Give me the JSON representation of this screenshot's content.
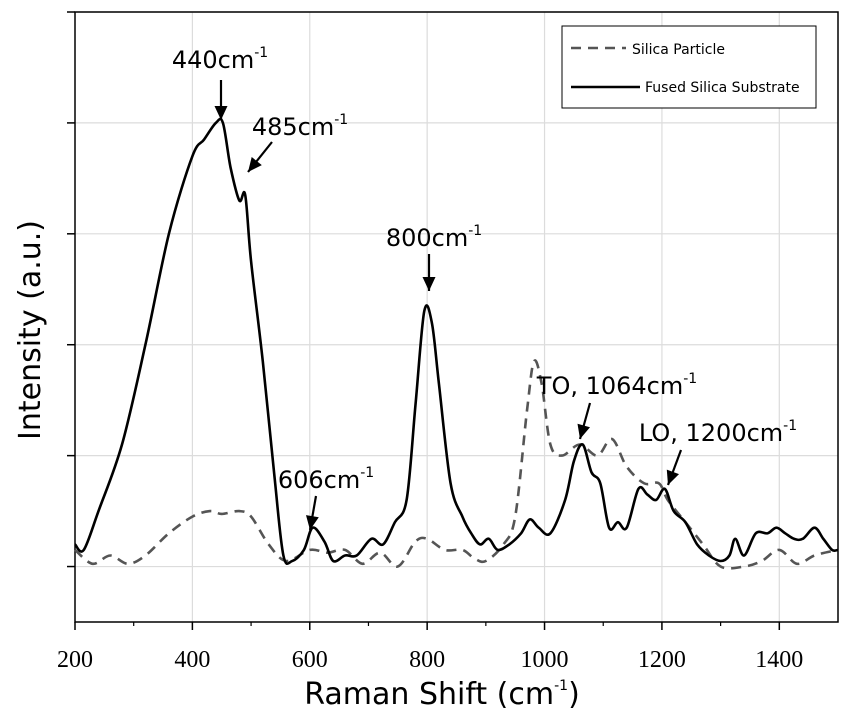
{
  "chart_data": {
    "type": "line",
    "xlabel": "Raman Shift (cm",
    "xlabel_sup": "-1",
    "xlabel_suffix": ")",
    "ylabel": "Intensity (a.u.)",
    "xlim": [
      200,
      1500
    ],
    "ylim": [
      -0.1,
      1.0
    ],
    "x_ticks": [
      200,
      400,
      600,
      800,
      1000,
      1200,
      1400
    ],
    "y_ticks": [
      0,
      0.2,
      0.4,
      0.6,
      0.8,
      1.0
    ],
    "grid": true,
    "legend_position": "top-right",
    "series": [
      {
        "name": "Silica Particle",
        "style": "dashed",
        "color": "#555555",
        "points": [
          [
            200,
            0.03
          ],
          [
            230,
            0.005
          ],
          [
            260,
            0.02
          ],
          [
            290,
            0.005
          ],
          [
            320,
            0.02
          ],
          [
            360,
            0.06
          ],
          [
            400,
            0.09
          ],
          [
            430,
            0.1
          ],
          [
            450,
            0.095
          ],
          [
            480,
            0.1
          ],
          [
            500,
            0.09
          ],
          [
            530,
            0.04
          ],
          [
            560,
            0.01
          ],
          [
            600,
            0.03
          ],
          [
            630,
            0.025
          ],
          [
            660,
            0.03
          ],
          [
            690,
            0.005
          ],
          [
            720,
            0.025
          ],
          [
            750,
            0.0
          ],
          [
            780,
            0.045
          ],
          [
            800,
            0.05
          ],
          [
            830,
            0.03
          ],
          [
            860,
            0.03
          ],
          [
            880,
            0.015
          ],
          [
            900,
            0.01
          ],
          [
            930,
            0.04
          ],
          [
            950,
            0.09
          ],
          [
            970,
            0.28
          ],
          [
            982,
            0.37
          ],
          [
            995,
            0.33
          ],
          [
            1010,
            0.22
          ],
          [
            1030,
            0.2
          ],
          [
            1060,
            0.22
          ],
          [
            1090,
            0.2
          ],
          [
            1115,
            0.23
          ],
          [
            1140,
            0.18
          ],
          [
            1170,
            0.15
          ],
          [
            1195,
            0.15
          ],
          [
            1210,
            0.12
          ],
          [
            1240,
            0.08
          ],
          [
            1270,
            0.04
          ],
          [
            1300,
            0.0
          ],
          [
            1340,
            0.0
          ],
          [
            1370,
            0.01
          ],
          [
            1400,
            0.03
          ],
          [
            1430,
            0.005
          ],
          [
            1460,
            0.02
          ],
          [
            1500,
            0.03
          ]
        ]
      },
      {
        "name": "Fused Silica Substrate",
        "style": "solid",
        "color": "#000000",
        "points": [
          [
            200,
            0.04
          ],
          [
            215,
            0.03
          ],
          [
            240,
            0.1
          ],
          [
            280,
            0.22
          ],
          [
            320,
            0.4
          ],
          [
            360,
            0.6
          ],
          [
            400,
            0.74
          ],
          [
            420,
            0.77
          ],
          [
            440,
            0.8
          ],
          [
            452,
            0.8
          ],
          [
            465,
            0.72
          ],
          [
            480,
            0.66
          ],
          [
            490,
            0.67
          ],
          [
            500,
            0.55
          ],
          [
            520,
            0.37
          ],
          [
            540,
            0.16
          ],
          [
            555,
            0.02
          ],
          [
            570,
            0.01
          ],
          [
            590,
            0.03
          ],
          [
            605,
            0.07
          ],
          [
            625,
            0.045
          ],
          [
            640,
            0.01
          ],
          [
            660,
            0.02
          ],
          [
            680,
            0.02
          ],
          [
            705,
            0.05
          ],
          [
            725,
            0.04
          ],
          [
            745,
            0.08
          ],
          [
            765,
            0.12
          ],
          [
            780,
            0.29
          ],
          [
            795,
            0.46
          ],
          [
            808,
            0.44
          ],
          [
            820,
            0.33
          ],
          [
            840,
            0.15
          ],
          [
            860,
            0.09
          ],
          [
            875,
            0.06
          ],
          [
            890,
            0.04
          ],
          [
            905,
            0.05
          ],
          [
            920,
            0.03
          ],
          [
            940,
            0.04
          ],
          [
            960,
            0.06
          ],
          [
            975,
            0.085
          ],
          [
            990,
            0.07
          ],
          [
            1010,
            0.06
          ],
          [
            1035,
            0.12
          ],
          [
            1050,
            0.19
          ],
          [
            1065,
            0.22
          ],
          [
            1080,
            0.17
          ],
          [
            1095,
            0.15
          ],
          [
            1110,
            0.07
          ],
          [
            1125,
            0.08
          ],
          [
            1140,
            0.07
          ],
          [
            1160,
            0.14
          ],
          [
            1175,
            0.13
          ],
          [
            1190,
            0.12
          ],
          [
            1205,
            0.14
          ],
          [
            1220,
            0.1
          ],
          [
            1240,
            0.08
          ],
          [
            1260,
            0.04
          ],
          [
            1280,
            0.02
          ],
          [
            1300,
            0.01
          ],
          [
            1315,
            0.02
          ],
          [
            1325,
            0.05
          ],
          [
            1340,
            0.02
          ],
          [
            1360,
            0.06
          ],
          [
            1380,
            0.06
          ],
          [
            1395,
            0.07
          ],
          [
            1410,
            0.06
          ],
          [
            1425,
            0.05
          ],
          [
            1440,
            0.05
          ],
          [
            1460,
            0.07
          ],
          [
            1475,
            0.05
          ],
          [
            1490,
            0.03
          ],
          [
            1500,
            0.03
          ]
        ]
      }
    ],
    "annotations": [
      {
        "text": "440cm",
        "sup": "-1",
        "x": 440,
        "y": 0.8
      },
      {
        "text": "485cm",
        "sup": "-1",
        "x": 485,
        "y": 0.67
      },
      {
        "text": "606cm",
        "sup": "-1",
        "x": 606,
        "y": 0.07
      },
      {
        "text": "800cm",
        "sup": "-1",
        "x": 800,
        "y": 0.46
      },
      {
        "text": "TO, 1064cm",
        "sup": "-1",
        "x": 1064,
        "y": 0.22
      },
      {
        "text": "LO, 1200cm",
        "sup": "-1",
        "x": 1200,
        "y": 0.14
      }
    ]
  }
}
